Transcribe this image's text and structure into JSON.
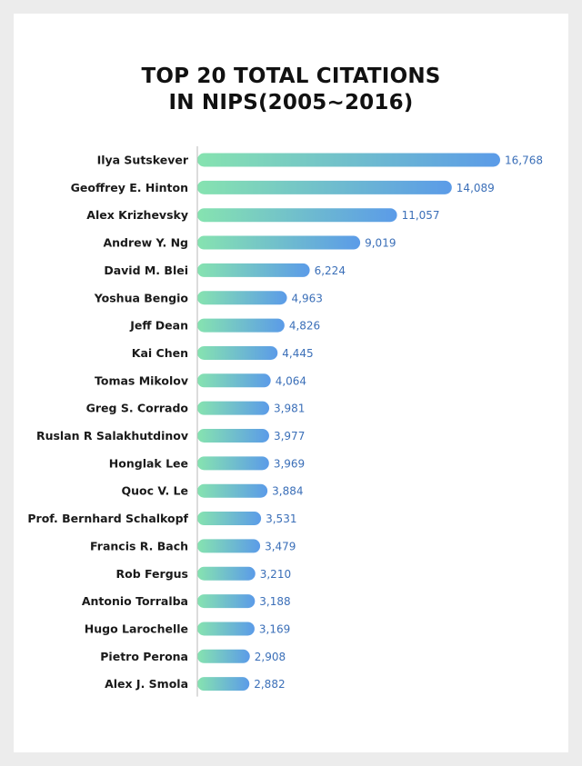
{
  "title_lines": [
    "TOP 20 TOTAL CITATIONS",
    "IN NIPS(2005~2016)"
  ],
  "colors": {
    "bar_start": "#86e3b0",
    "bar_end": "#5b9be8",
    "value_text": "#3b6fb8",
    "axis": "#b8b8b8"
  },
  "chart_data": {
    "type": "bar",
    "orientation": "horizontal",
    "title": "TOP 20 TOTAL CITATIONS IN NIPS(2005~2016)",
    "xlabel": "",
    "ylabel": "",
    "xlim": [
      0,
      16768
    ],
    "grid": false,
    "categories": [
      "Ilya Sutskever",
      "Geoffrey E. Hinton",
      "Alex Krizhevsky",
      "Andrew Y. Ng",
      "David M. Blei",
      "Yoshua Bengio",
      "Jeff Dean",
      "Kai Chen",
      "Tomas Mikolov",
      "Greg S. Corrado",
      "Ruslan R Salakhutdinov",
      "Honglak Lee",
      "Quoc V. Le",
      "Prof. Bernhard Schalkopf",
      "Francis R. Bach",
      "Rob Fergus",
      "Antonio Torralba",
      "Hugo Larochelle",
      "Pietro Perona",
      "Alex J. Smola"
    ],
    "values": [
      16768,
      14089,
      11057,
      9019,
      6224,
      4963,
      4826,
      4445,
      4064,
      3981,
      3977,
      3969,
      3884,
      3531,
      3479,
      3210,
      3188,
      3169,
      2908,
      2882
    ],
    "value_labels": [
      "16,768",
      "14,089",
      "11,057",
      "9,019",
      "6,224",
      "4,963",
      "4,826",
      "4,445",
      "4,064",
      "3,981",
      "3,977",
      "3,969",
      "3,884",
      "3,531",
      "3,479",
      "3,210",
      "3,188",
      "3,169",
      "2,908",
      "2,882"
    ]
  }
}
